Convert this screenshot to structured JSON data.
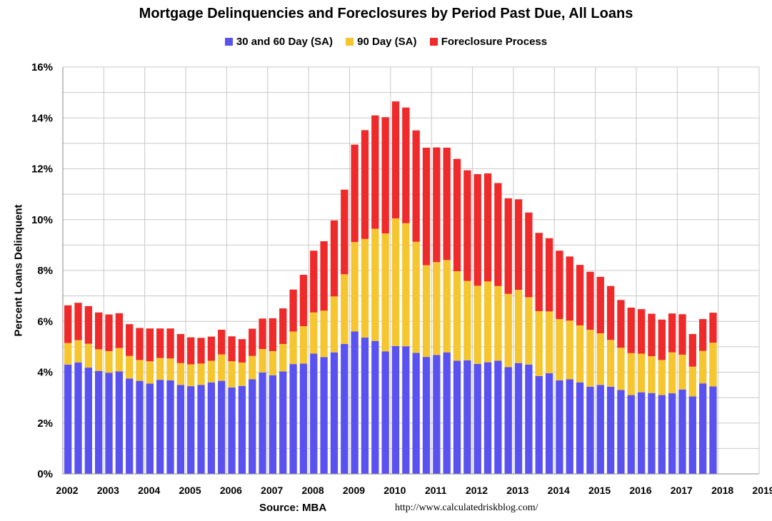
{
  "chart_data": {
    "type": "bar",
    "stacked": true,
    "title": "Mortgage Delinquencies and Foreclosures by Period Past Due, All Loans",
    "ylabel": "Percent Loans Delinquent",
    "xlabel": "",
    "ylim": [
      0,
      16
    ],
    "yticks": [
      "0%",
      "2%",
      "4%",
      "6%",
      "8%",
      "10%",
      "12%",
      "14%",
      "16%"
    ],
    "xticks": [
      "2002",
      "2003",
      "2004",
      "2005",
      "2006",
      "2007",
      "2008",
      "2009",
      "2010",
      "2011",
      "2012",
      "2013",
      "2014",
      "2015",
      "2016",
      "2017",
      "2018",
      "2019"
    ],
    "x_start": 2002,
    "periods_per_year": 4,
    "grid": true,
    "legend_position": "top",
    "source": "Source: MBA",
    "url": "http://www.calculatedriskblog.com/",
    "series": [
      {
        "name": "30 and 60 Day (SA)",
        "color": "#5a52f0",
        "values": [
          4.3,
          4.38,
          4.18,
          4.05,
          3.98,
          4.03,
          3.75,
          3.66,
          3.55,
          3.7,
          3.68,
          3.5,
          3.45,
          3.5,
          3.6,
          3.66,
          3.4,
          3.46,
          3.72,
          3.99,
          3.88,
          4.03,
          4.32,
          4.34,
          4.73,
          4.59,
          4.78,
          5.11,
          5.6,
          5.36,
          5.23,
          4.82,
          5.03,
          5.02,
          4.76,
          4.6,
          4.68,
          4.78,
          4.45,
          4.47,
          4.33,
          4.39,
          4.45,
          4.2,
          4.36,
          4.3,
          3.85,
          3.96,
          3.68,
          3.72,
          3.6,
          3.43,
          3.5,
          3.43,
          3.3,
          3.1,
          3.21,
          3.18,
          3.1,
          3.17,
          3.32,
          3.05,
          3.56,
          3.44
        ]
      },
      {
        "name": "90 Day (SA)",
        "color": "#f5c630",
        "values": [
          0.85,
          0.88,
          0.94,
          0.85,
          0.85,
          0.92,
          0.89,
          0.82,
          0.88,
          0.86,
          0.86,
          0.86,
          0.86,
          0.84,
          0.85,
          1.04,
          1.03,
          0.92,
          0.92,
          0.92,
          0.95,
          1.08,
          1.28,
          1.47,
          1.62,
          1.83,
          2.2,
          2.74,
          3.52,
          3.88,
          4.41,
          4.64,
          5.02,
          4.84,
          4.37,
          3.61,
          3.65,
          3.63,
          3.52,
          3.12,
          3.07,
          3.18,
          2.94,
          2.88,
          2.88,
          2.65,
          2.55,
          2.43,
          2.41,
          2.31,
          2.24,
          2.24,
          2.03,
          1.84,
          1.66,
          1.65,
          1.52,
          1.45,
          1.38,
          1.61,
          1.37,
          1.17,
          1.28,
          1.72
        ]
      },
      {
        "name": "Foreclosure Process",
        "color": "#ee2a2a",
        "values": [
          1.48,
          1.47,
          1.48,
          1.45,
          1.44,
          1.37,
          1.25,
          1.26,
          1.29,
          1.16,
          1.18,
          1.14,
          1.06,
          1.01,
          0.95,
          0.97,
          0.98,
          0.92,
          1.07,
          1.2,
          1.29,
          1.4,
          1.65,
          2.02,
          2.43,
          2.73,
          2.99,
          3.33,
          3.83,
          4.28,
          4.46,
          4.57,
          4.6,
          4.55,
          4.38,
          4.62,
          4.51,
          4.42,
          4.42,
          4.35,
          4.39,
          4.25,
          4.05,
          3.76,
          3.56,
          3.33,
          3.08,
          2.88,
          2.69,
          2.52,
          2.38,
          2.28,
          2.22,
          2.12,
          1.88,
          1.79,
          1.75,
          1.67,
          1.59,
          1.53,
          1.59,
          1.28,
          1.25,
          1.18
        ]
      }
    ]
  }
}
